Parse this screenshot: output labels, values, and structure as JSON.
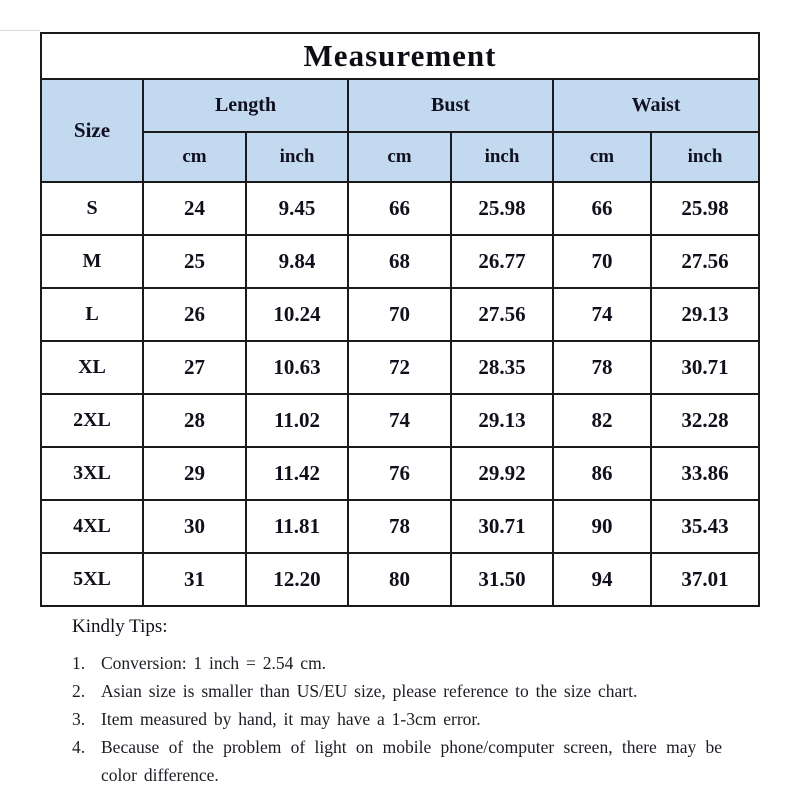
{
  "title": "Measurement",
  "table": {
    "corner_header": "Size",
    "group_headers": [
      "Length",
      "Bust",
      "Waist"
    ],
    "unit_headers": [
      "cm",
      "inch",
      "cm",
      "inch",
      "cm",
      "inch"
    ],
    "rows": [
      {
        "size": "S",
        "values": [
          "24",
          "9.45",
          "66",
          "25.98",
          "66",
          "25.98"
        ]
      },
      {
        "size": "M",
        "values": [
          "25",
          "9.84",
          "68",
          "26.77",
          "70",
          "27.56"
        ]
      },
      {
        "size": "L",
        "values": [
          "26",
          "10.24",
          "70",
          "27.56",
          "74",
          "29.13"
        ]
      },
      {
        "size": "XL",
        "values": [
          "27",
          "10.63",
          "72",
          "28.35",
          "78",
          "30.71"
        ]
      },
      {
        "size": "2XL",
        "values": [
          "28",
          "11.02",
          "74",
          "29.13",
          "82",
          "32.28"
        ]
      },
      {
        "size": "3XL",
        "values": [
          "29",
          "11.42",
          "76",
          "29.92",
          "86",
          "33.86"
        ]
      },
      {
        "size": "4XL",
        "values": [
          "30",
          "11.81",
          "78",
          "30.71",
          "90",
          "35.43"
        ]
      },
      {
        "size": "5XL",
        "values": [
          "31",
          "12.20",
          "80",
          "31.50",
          "94",
          "37.01"
        ]
      }
    ]
  },
  "tips": {
    "heading": "Kindly Tips:",
    "items": [
      {
        "num": "1.",
        "text": "Conversion: 1 inch = 2.54 cm."
      },
      {
        "num": "2.",
        "text": "Asian size is smaller than US/EU size, please reference to the size chart."
      },
      {
        "num": "3.",
        "text": "Item measured by hand, it may have a 1-3cm error."
      },
      {
        "num": "4.",
        "text": "Because of the problem of light on mobile phone/computer screen, there may be color difference."
      }
    ]
  },
  "colors": {
    "header_bg": "#c3d9ef",
    "border": "#1a1a1a",
    "text": "#12121c"
  },
  "chart_data": {
    "type": "table",
    "title": "Measurement",
    "columns": [
      "Size",
      "Length cm",
      "Length inch",
      "Bust cm",
      "Bust inch",
      "Waist cm",
      "Waist inch"
    ],
    "rows": [
      [
        "S",
        24,
        9.45,
        66,
        25.98,
        66,
        25.98
      ],
      [
        "M",
        25,
        9.84,
        68,
        26.77,
        70,
        27.56
      ],
      [
        "L",
        26,
        10.24,
        70,
        27.56,
        74,
        29.13
      ],
      [
        "XL",
        27,
        10.63,
        72,
        28.35,
        78,
        30.71
      ],
      [
        "2XL",
        28,
        11.02,
        74,
        29.13,
        82,
        32.28
      ],
      [
        "3XL",
        29,
        11.42,
        76,
        29.92,
        86,
        33.86
      ],
      [
        "4XL",
        30,
        11.81,
        78,
        30.71,
        90,
        35.43
      ],
      [
        "5XL",
        31,
        12.2,
        80,
        31.5,
        94,
        37.01
      ]
    ],
    "notes_title": "Kindly Tips:",
    "notes": [
      "Conversion: 1 inch = 2.54 cm.",
      "Asian size is smaller than US/EU size, please reference to the size chart.",
      "Item measured by hand, it may have a 1-3cm error.",
      "Because of the problem of light on mobile phone/computer screen, there may be color difference."
    ]
  }
}
